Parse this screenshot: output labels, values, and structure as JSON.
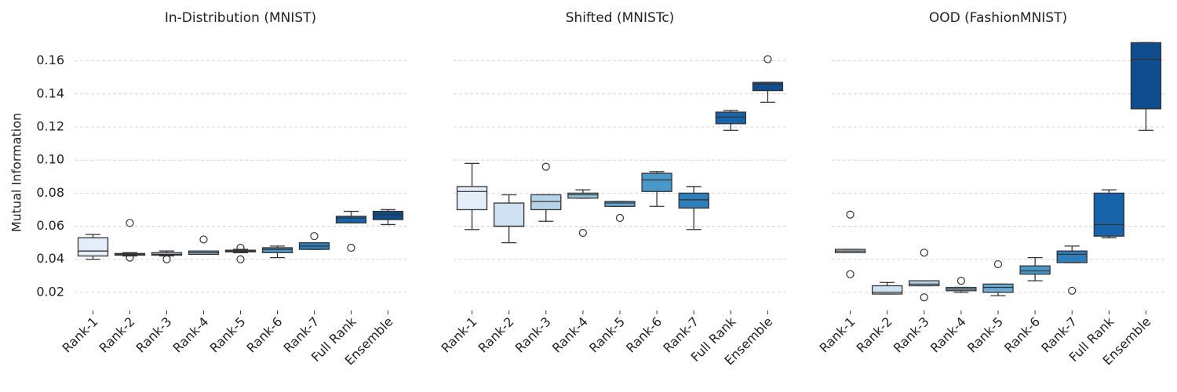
{
  "chart_data": [
    {
      "type": "box",
      "title": "In-Distribution (MNIST)",
      "ylabel": "Mutual Information",
      "ylim": [
        0.01,
        0.175
      ],
      "yticks": [
        {
          "value": 0.02,
          "label": "0.02"
        },
        {
          "value": 0.04,
          "label": "0.04"
        },
        {
          "value": 0.06,
          "label": "0.06"
        },
        {
          "value": 0.08,
          "label": "0.08"
        },
        {
          "value": 0.1,
          "label": "0.10"
        },
        {
          "value": 0.12,
          "label": "0.12"
        },
        {
          "value": 0.14,
          "label": "0.14"
        },
        {
          "value": 0.16,
          "label": "0.16"
        }
      ],
      "grid": true,
      "categories": [
        "Rank-1",
        "Rank-2",
        "Rank-3",
        "Rank-4",
        "Rank-5",
        "Rank-6",
        "Rank-7",
        "Full Rank",
        "Ensemble"
      ],
      "colors": [
        "#e3eef9",
        "#cfe1f2",
        "#b5d4e9",
        "#93c4de",
        "#6aaed6",
        "#4a98c9",
        "#2e7ebc",
        "#1764ab",
        "#0f4d8f"
      ],
      "boxes": [
        {
          "whislo": 0.04,
          "q1": 0.042,
          "med": 0.045,
          "q3": 0.053,
          "whishi": 0.055,
          "fliers": []
        },
        {
          "whislo": 0.042,
          "q1": 0.0425,
          "med": 0.043,
          "q3": 0.0435,
          "whishi": 0.044,
          "fliers": [
            0.062,
            0.041
          ]
        },
        {
          "whislo": 0.042,
          "q1": 0.0425,
          "med": 0.043,
          "q3": 0.044,
          "whishi": 0.045,
          "fliers": [
            0.04
          ]
        },
        {
          "whislo": 0.043,
          "q1": 0.043,
          "med": 0.044,
          "q3": 0.045,
          "whishi": 0.045,
          "fliers": [
            0.052
          ]
        },
        {
          "whislo": 0.044,
          "q1": 0.0445,
          "med": 0.045,
          "q3": 0.0455,
          "whishi": 0.046,
          "fliers": [
            0.047,
            0.04
          ]
        },
        {
          "whislo": 0.041,
          "q1": 0.044,
          "med": 0.046,
          "q3": 0.047,
          "whishi": 0.048,
          "fliers": []
        },
        {
          "whislo": 0.046,
          "q1": 0.046,
          "med": 0.048,
          "q3": 0.05,
          "whishi": 0.05,
          "fliers": [
            0.054
          ]
        },
        {
          "whislo": 0.062,
          "q1": 0.062,
          "med": 0.065,
          "q3": 0.066,
          "whishi": 0.069,
          "fliers": [
            0.047
          ]
        },
        {
          "whislo": 0.061,
          "q1": 0.064,
          "med": 0.067,
          "q3": 0.069,
          "whishi": 0.07,
          "fliers": []
        }
      ]
    },
    {
      "type": "box",
      "title": "Shifted (MNISTc)",
      "ylim": [
        0.01,
        0.175
      ],
      "grid": true,
      "categories": [
        "Rank-1",
        "Rank-2",
        "Rank-3",
        "Rank-4",
        "Rank-5",
        "Rank-6",
        "Rank-7",
        "Full Rank",
        "Ensemble"
      ],
      "colors": [
        "#e3eef9",
        "#cfe1f2",
        "#b5d4e9",
        "#93c4de",
        "#6aaed6",
        "#4a98c9",
        "#2e7ebc",
        "#1764ab",
        "#0f4d8f"
      ],
      "boxes": [
        {
          "whislo": 0.058,
          "q1": 0.07,
          "med": 0.081,
          "q3": 0.084,
          "whishi": 0.098,
          "fliers": []
        },
        {
          "whislo": 0.05,
          "q1": 0.06,
          "med": 0.06,
          "q3": 0.074,
          "whishi": 0.079,
          "fliers": []
        },
        {
          "whislo": 0.063,
          "q1": 0.07,
          "med": 0.075,
          "q3": 0.079,
          "whishi": 0.079,
          "fliers": [
            0.096
          ]
        },
        {
          "whislo": 0.077,
          "q1": 0.077,
          "med": 0.079,
          "q3": 0.08,
          "whishi": 0.082,
          "fliers": [
            0.056
          ]
        },
        {
          "whislo": 0.072,
          "q1": 0.072,
          "med": 0.074,
          "q3": 0.075,
          "whishi": 0.075,
          "fliers": [
            0.065
          ]
        },
        {
          "whislo": 0.072,
          "q1": 0.081,
          "med": 0.088,
          "q3": 0.092,
          "whishi": 0.093,
          "fliers": []
        },
        {
          "whislo": 0.058,
          "q1": 0.071,
          "med": 0.076,
          "q3": 0.08,
          "whishi": 0.084,
          "fliers": []
        },
        {
          "whislo": 0.118,
          "q1": 0.122,
          "med": 0.126,
          "q3": 0.129,
          "whishi": 0.13,
          "fliers": []
        },
        {
          "whislo": 0.135,
          "q1": 0.142,
          "med": 0.146,
          "q3": 0.147,
          "whishi": 0.147,
          "fliers": [
            0.161
          ]
        }
      ]
    },
    {
      "type": "box",
      "title": "OOD (FashionMNIST)",
      "ylim": [
        0.01,
        0.175
      ],
      "grid": true,
      "categories": [
        "Rank-1",
        "Rank-2",
        "Rank-3",
        "Rank-4",
        "Rank-5",
        "Rank-6",
        "Rank-7",
        "Full Rank",
        "Ensemble"
      ],
      "colors": [
        "#e3eef9",
        "#cfe1f2",
        "#b5d4e9",
        "#93c4de",
        "#6aaed6",
        "#4a98c9",
        "#2e7ebc",
        "#1764ab",
        "#0f4d8f"
      ],
      "boxes": [
        {
          "whislo": 0.044,
          "q1": 0.044,
          "med": 0.045,
          "q3": 0.046,
          "whishi": 0.046,
          "fliers": [
            0.067,
            0.031
          ]
        },
        {
          "whislo": 0.019,
          "q1": 0.019,
          "med": 0.02,
          "q3": 0.024,
          "whishi": 0.026,
          "fliers": []
        },
        {
          "whislo": 0.024,
          "q1": 0.024,
          "med": 0.025,
          "q3": 0.027,
          "whishi": 0.027,
          "fliers": [
            0.044,
            0.017
          ]
        },
        {
          "whislo": 0.02,
          "q1": 0.021,
          "med": 0.022,
          "q3": 0.023,
          "whishi": 0.023,
          "fliers": [
            0.027
          ]
        },
        {
          "whislo": 0.018,
          "q1": 0.02,
          "med": 0.023,
          "q3": 0.025,
          "whishi": 0.025,
          "fliers": [
            0.037
          ]
        },
        {
          "whislo": 0.027,
          "q1": 0.031,
          "med": 0.033,
          "q3": 0.036,
          "whishi": 0.041,
          "fliers": []
        },
        {
          "whislo": 0.038,
          "q1": 0.038,
          "med": 0.043,
          "q3": 0.045,
          "whishi": 0.048,
          "fliers": [
            0.021
          ]
        },
        {
          "whislo": 0.053,
          "q1": 0.054,
          "med": 0.061,
          "q3": 0.08,
          "whishi": 0.082,
          "fliers": []
        },
        {
          "whislo": 0.118,
          "q1": 0.131,
          "med": 0.161,
          "q3": 0.171,
          "whishi": 0.171,
          "fliers": []
        }
      ]
    }
  ]
}
